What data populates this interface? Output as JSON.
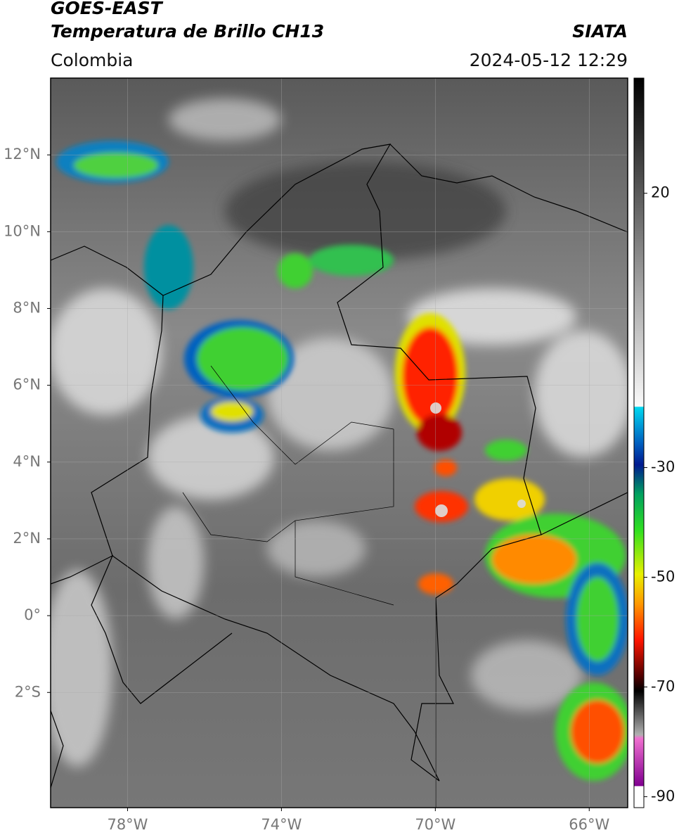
{
  "header": {
    "title": "GOES-EAST",
    "subtitle": "Temperatura de Brillo CH13",
    "source": "SIATA",
    "region": "Colombia",
    "timestamp": "2024-05-12 12:29"
  },
  "map": {
    "xlim": [
      -80,
      -65
    ],
    "ylim": [
      -5,
      14
    ],
    "xticks": [
      {
        "value": -78,
        "label": "78°W"
      },
      {
        "value": -74,
        "label": "74°W"
      },
      {
        "value": -70,
        "label": "70°W"
      },
      {
        "value": -66,
        "label": "66°W"
      }
    ],
    "yticks": [
      {
        "value": 12,
        "label": "12°N"
      },
      {
        "value": 10,
        "label": "10°N"
      },
      {
        "value": 8,
        "label": "8°N"
      },
      {
        "value": 6,
        "label": "6°N"
      },
      {
        "value": 4,
        "label": "4°N"
      },
      {
        "value": 2,
        "label": "2°N"
      },
      {
        "value": 0,
        "label": "0°"
      },
      {
        "value": -2,
        "label": "2°S"
      }
    ],
    "grid": true
  },
  "colorbar": {
    "lim": [
      -92,
      41
    ],
    "ticks": [
      20,
      -30,
      -50,
      -70,
      -90
    ]
  }
}
